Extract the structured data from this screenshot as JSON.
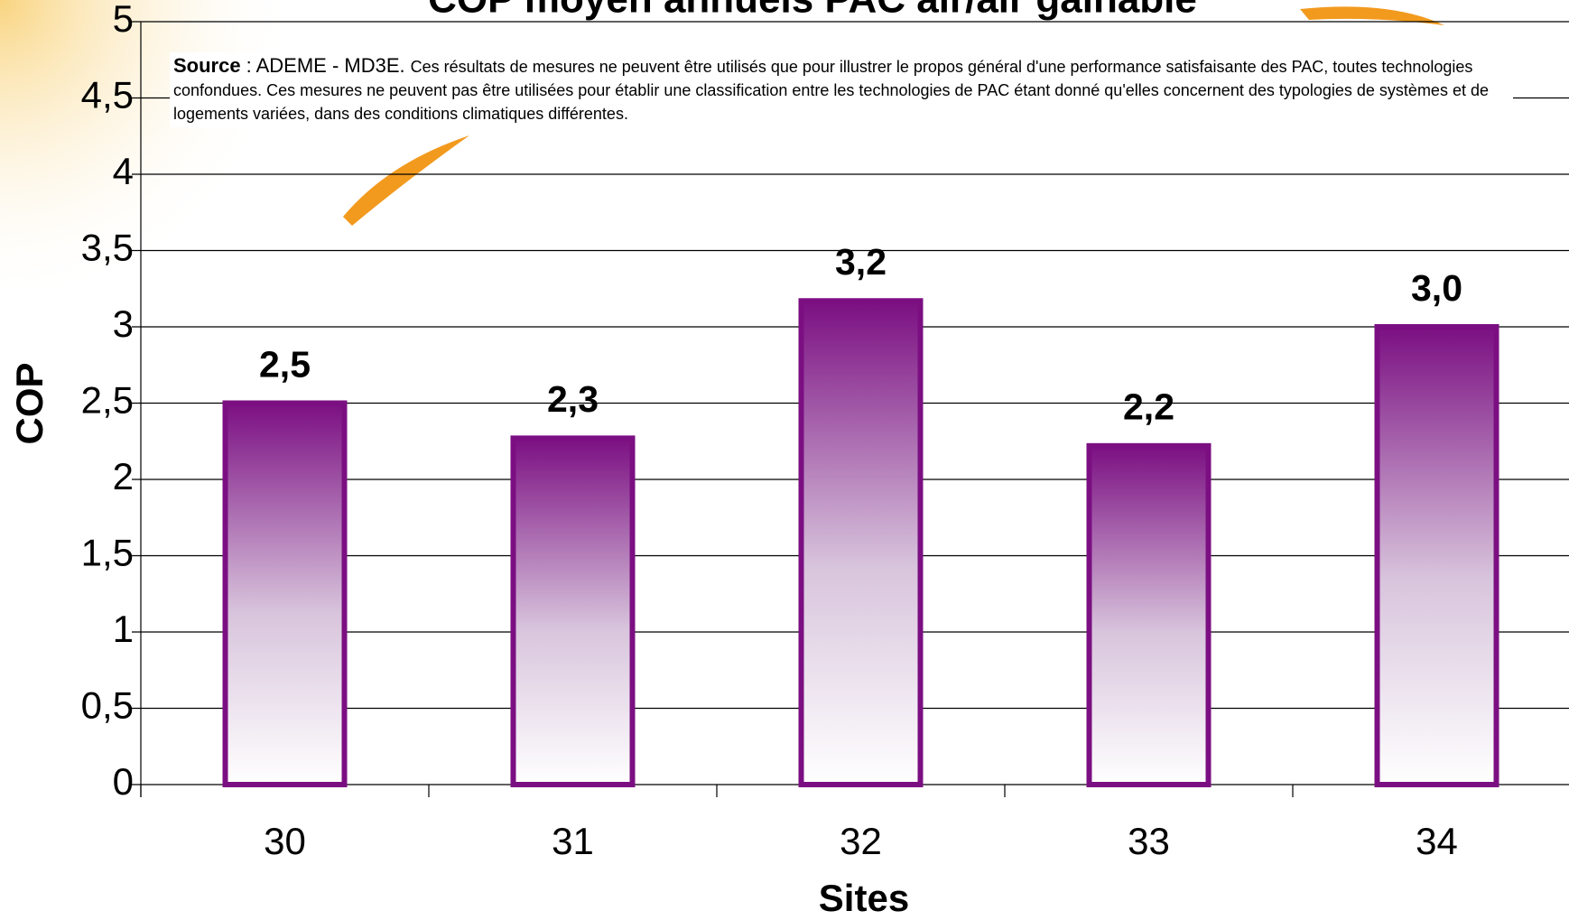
{
  "chart_data": {
    "type": "bar",
    "title": "COP moyen annuels PAC air/air gainable",
    "source_label": "Source",
    "source_org": ": ADEME - MD3E.",
    "source_text": "Ces résultats de mesures ne peuvent être utilisés que pour illustrer le propos général d'une performance satisfaisante des PAC, toutes technologies confondues. Ces mesures ne peuvent pas être utilisées pour établir une classification entre les technologies de PAC étant donné qu'elles concernent des typologies de systèmes et de logements variées, dans des conditions climatiques différentes.",
    "x_label": "Sites",
    "y_label": "COP",
    "categories": [
      "30",
      "31",
      "32",
      "33",
      "34"
    ],
    "values": [
      2.5,
      2.27,
      3.17,
      2.22,
      3.0
    ],
    "value_labels": [
      "2,5",
      "2,3",
      "3,2",
      "2,2",
      "3,0"
    ],
    "color": "#7b0f82",
    "ylim": [
      0,
      5
    ],
    "yticks": [
      0,
      {
        "value": 0.5,
        "label": "0,5"
      },
      1,
      {
        "value": 1.5,
        "label": "1,5"
      },
      2,
      {
        "value": 2.5,
        "label": "2,5"
      },
      3,
      {
        "value": 3.5,
        "label": "3,5"
      },
      4,
      {
        "value": 4.5,
        "label": "4,5"
      },
      5
    ],
    "grid": true
  }
}
